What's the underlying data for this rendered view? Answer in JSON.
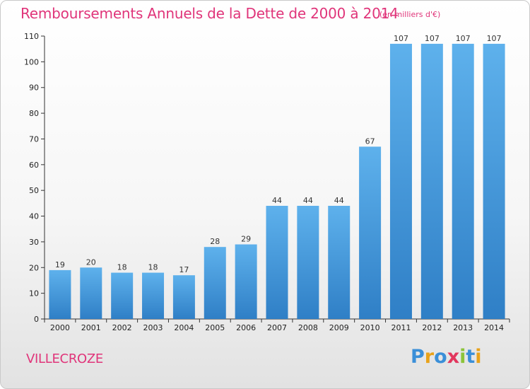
{
  "header": {
    "title": "Remboursements Annuels de la Dette de 2000 à 2014",
    "subtitle": "(en milliers d'€)"
  },
  "footer": {
    "city": "VILLECROZE",
    "logo_letters": [
      {
        "char": "P",
        "color": "#3a8fd8"
      },
      {
        "char": "r",
        "color": "#e8a21a"
      },
      {
        "char": "o",
        "color": "#3a8fd8"
      },
      {
        "char": "x",
        "color": "#e2375e"
      },
      {
        "char": "i",
        "color": "#8cc43a"
      },
      {
        "char": "t",
        "color": "#3a8fd8"
      },
      {
        "char": "i",
        "color": "#e8a21a"
      }
    ]
  },
  "colors": {
    "bar_top": "#5eb1ec",
    "bar_bottom": "#2f7fc6",
    "axis": "#333333",
    "grid": "#d0d0d0",
    "accent": "#e0357a"
  },
  "chart_data": {
    "type": "bar",
    "title": "Remboursements Annuels de la Dette de 2000 à 2014",
    "xlabel": "",
    "ylabel": "",
    "unit": "en milliers d'€",
    "categories": [
      "2000",
      "2001",
      "2002",
      "2003",
      "2004",
      "2005",
      "2006",
      "2007",
      "2008",
      "2009",
      "2010",
      "2011",
      "2012",
      "2013",
      "2014"
    ],
    "values": [
      19,
      20,
      18,
      18,
      17,
      28,
      29,
      44,
      44,
      44,
      67,
      107,
      107,
      107,
      107
    ],
    "ylim": [
      0,
      110
    ],
    "yticks": [
      0,
      10,
      20,
      30,
      40,
      50,
      60,
      70,
      80,
      90,
      100,
      110
    ],
    "grid": false,
    "legend": "none"
  }
}
